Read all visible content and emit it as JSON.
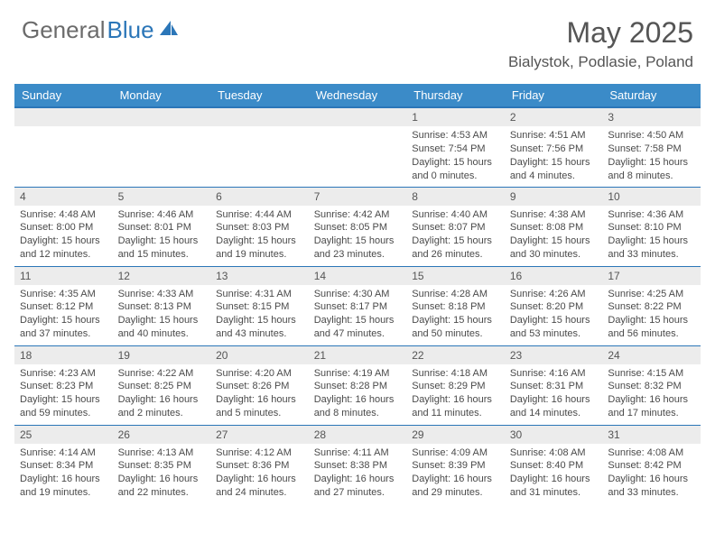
{
  "brand": {
    "part1": "General",
    "part2": "Blue"
  },
  "title": "May 2025",
  "location": "Bialystok, Podlasie, Poland",
  "colors": {
    "header_bg": "#3b8bc8",
    "header_border": "#2b76b8",
    "daynum_bg": "#ececec",
    "text": "#4a4a4a"
  },
  "weekdays": [
    "Sunday",
    "Monday",
    "Tuesday",
    "Wednesday",
    "Thursday",
    "Friday",
    "Saturday"
  ],
  "weeks": [
    [
      null,
      null,
      null,
      null,
      {
        "n": "1",
        "sr": "Sunrise: 4:53 AM",
        "ss": "Sunset: 7:54 PM",
        "dl": "Daylight: 15 hours and 0 minutes."
      },
      {
        "n": "2",
        "sr": "Sunrise: 4:51 AM",
        "ss": "Sunset: 7:56 PM",
        "dl": "Daylight: 15 hours and 4 minutes."
      },
      {
        "n": "3",
        "sr": "Sunrise: 4:50 AM",
        "ss": "Sunset: 7:58 PM",
        "dl": "Daylight: 15 hours and 8 minutes."
      }
    ],
    [
      {
        "n": "4",
        "sr": "Sunrise: 4:48 AM",
        "ss": "Sunset: 8:00 PM",
        "dl": "Daylight: 15 hours and 12 minutes."
      },
      {
        "n": "5",
        "sr": "Sunrise: 4:46 AM",
        "ss": "Sunset: 8:01 PM",
        "dl": "Daylight: 15 hours and 15 minutes."
      },
      {
        "n": "6",
        "sr": "Sunrise: 4:44 AM",
        "ss": "Sunset: 8:03 PM",
        "dl": "Daylight: 15 hours and 19 minutes."
      },
      {
        "n": "7",
        "sr": "Sunrise: 4:42 AM",
        "ss": "Sunset: 8:05 PM",
        "dl": "Daylight: 15 hours and 23 minutes."
      },
      {
        "n": "8",
        "sr": "Sunrise: 4:40 AM",
        "ss": "Sunset: 8:07 PM",
        "dl": "Daylight: 15 hours and 26 minutes."
      },
      {
        "n": "9",
        "sr": "Sunrise: 4:38 AM",
        "ss": "Sunset: 8:08 PM",
        "dl": "Daylight: 15 hours and 30 minutes."
      },
      {
        "n": "10",
        "sr": "Sunrise: 4:36 AM",
        "ss": "Sunset: 8:10 PM",
        "dl": "Daylight: 15 hours and 33 minutes."
      }
    ],
    [
      {
        "n": "11",
        "sr": "Sunrise: 4:35 AM",
        "ss": "Sunset: 8:12 PM",
        "dl": "Daylight: 15 hours and 37 minutes."
      },
      {
        "n": "12",
        "sr": "Sunrise: 4:33 AM",
        "ss": "Sunset: 8:13 PM",
        "dl": "Daylight: 15 hours and 40 minutes."
      },
      {
        "n": "13",
        "sr": "Sunrise: 4:31 AM",
        "ss": "Sunset: 8:15 PM",
        "dl": "Daylight: 15 hours and 43 minutes."
      },
      {
        "n": "14",
        "sr": "Sunrise: 4:30 AM",
        "ss": "Sunset: 8:17 PM",
        "dl": "Daylight: 15 hours and 47 minutes."
      },
      {
        "n": "15",
        "sr": "Sunrise: 4:28 AM",
        "ss": "Sunset: 8:18 PM",
        "dl": "Daylight: 15 hours and 50 minutes."
      },
      {
        "n": "16",
        "sr": "Sunrise: 4:26 AM",
        "ss": "Sunset: 8:20 PM",
        "dl": "Daylight: 15 hours and 53 minutes."
      },
      {
        "n": "17",
        "sr": "Sunrise: 4:25 AM",
        "ss": "Sunset: 8:22 PM",
        "dl": "Daylight: 15 hours and 56 minutes."
      }
    ],
    [
      {
        "n": "18",
        "sr": "Sunrise: 4:23 AM",
        "ss": "Sunset: 8:23 PM",
        "dl": "Daylight: 15 hours and 59 minutes."
      },
      {
        "n": "19",
        "sr": "Sunrise: 4:22 AM",
        "ss": "Sunset: 8:25 PM",
        "dl": "Daylight: 16 hours and 2 minutes."
      },
      {
        "n": "20",
        "sr": "Sunrise: 4:20 AM",
        "ss": "Sunset: 8:26 PM",
        "dl": "Daylight: 16 hours and 5 minutes."
      },
      {
        "n": "21",
        "sr": "Sunrise: 4:19 AM",
        "ss": "Sunset: 8:28 PM",
        "dl": "Daylight: 16 hours and 8 minutes."
      },
      {
        "n": "22",
        "sr": "Sunrise: 4:18 AM",
        "ss": "Sunset: 8:29 PM",
        "dl": "Daylight: 16 hours and 11 minutes."
      },
      {
        "n": "23",
        "sr": "Sunrise: 4:16 AM",
        "ss": "Sunset: 8:31 PM",
        "dl": "Daylight: 16 hours and 14 minutes."
      },
      {
        "n": "24",
        "sr": "Sunrise: 4:15 AM",
        "ss": "Sunset: 8:32 PM",
        "dl": "Daylight: 16 hours and 17 minutes."
      }
    ],
    [
      {
        "n": "25",
        "sr": "Sunrise: 4:14 AM",
        "ss": "Sunset: 8:34 PM",
        "dl": "Daylight: 16 hours and 19 minutes."
      },
      {
        "n": "26",
        "sr": "Sunrise: 4:13 AM",
        "ss": "Sunset: 8:35 PM",
        "dl": "Daylight: 16 hours and 22 minutes."
      },
      {
        "n": "27",
        "sr": "Sunrise: 4:12 AM",
        "ss": "Sunset: 8:36 PM",
        "dl": "Daylight: 16 hours and 24 minutes."
      },
      {
        "n": "28",
        "sr": "Sunrise: 4:11 AM",
        "ss": "Sunset: 8:38 PM",
        "dl": "Daylight: 16 hours and 27 minutes."
      },
      {
        "n": "29",
        "sr": "Sunrise: 4:09 AM",
        "ss": "Sunset: 8:39 PM",
        "dl": "Daylight: 16 hours and 29 minutes."
      },
      {
        "n": "30",
        "sr": "Sunrise: 4:08 AM",
        "ss": "Sunset: 8:40 PM",
        "dl": "Daylight: 16 hours and 31 minutes."
      },
      {
        "n": "31",
        "sr": "Sunrise: 4:08 AM",
        "ss": "Sunset: 8:42 PM",
        "dl": "Daylight: 16 hours and 33 minutes."
      }
    ]
  ]
}
